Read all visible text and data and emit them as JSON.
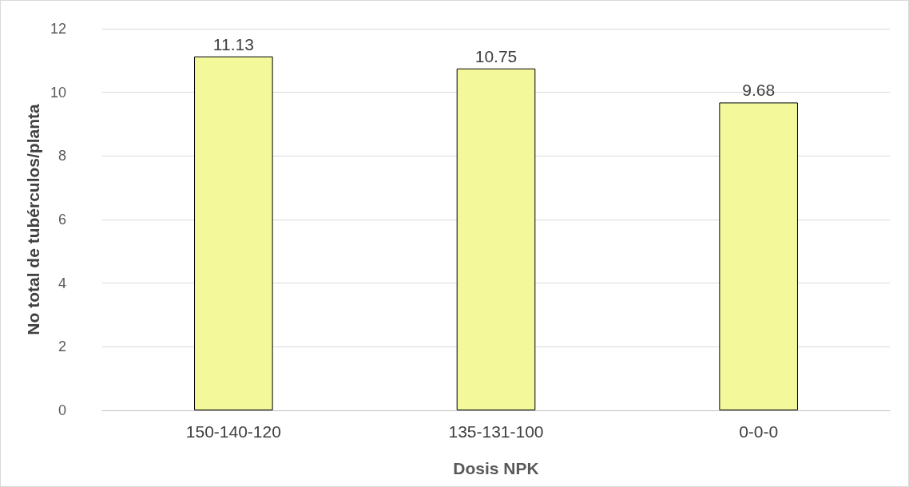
{
  "chart_data": {
    "type": "bar",
    "xlabel": "Dosis NPK",
    "ylabel": "No total de tubérculos/planta",
    "categories": [
      "150-140-120",
      "135-131-100",
      "0-0-0"
    ],
    "values": [
      11.13,
      10.75,
      9.68
    ],
    "color": "#f3f99b",
    "ylim": [
      0,
      12
    ],
    "yticks": [
      0,
      2,
      4,
      6,
      8,
      10,
      12
    ],
    "grid": "y",
    "data_labels": true
  }
}
